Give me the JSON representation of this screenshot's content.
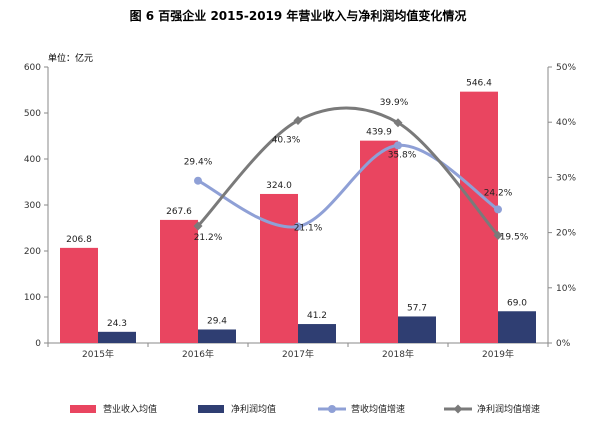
{
  "chart_data": {
    "type": "bar",
    "title": "图 6  百强企业 2015-2019 年营业收入与净利润均值变化情况",
    "unit_label": "单位：亿元",
    "categories": [
      "2015年",
      "2016年",
      "2017年",
      "2018年",
      "2019年"
    ],
    "ylim_left": [
      0,
      600
    ],
    "yticks_left": [
      "0",
      "100",
      "200",
      "300",
      "400",
      "500",
      "600"
    ],
    "ylim_right": [
      0,
      0.5
    ],
    "yticks_right": [
      "0%",
      "10%",
      "20%",
      "30%",
      "40%",
      "50%"
    ],
    "grid": false,
    "legend_position": "bottom",
    "series": [
      {
        "name": "营业收入均值",
        "type": "bar",
        "axis": "left",
        "color": "#e94560",
        "values": [
          206.8,
          267.6,
          324.0,
          439.9,
          546.4
        ],
        "labels": [
          "206.8",
          "267.6",
          "324.0",
          "439.9",
          "546.4"
        ]
      },
      {
        "name": "净利润均值",
        "type": "bar",
        "axis": "left",
        "color": "#2f3e72",
        "values": [
          24.3,
          29.4,
          41.2,
          57.7,
          69.0
        ],
        "labels": [
          "24.3",
          "29.4",
          "41.2",
          "57.7",
          "69.0"
        ]
      },
      {
        "name": "营收均值增速",
        "type": "line",
        "axis": "right",
        "color": "#8fa0d6",
        "marker": "circle",
        "values": [
          null,
          0.294,
          0.211,
          0.358,
          0.242
        ],
        "labels": [
          "",
          "29.4%",
          "21.1%",
          "35.8%",
          "24.2%"
        ]
      },
      {
        "name": "净利润均值增速",
        "type": "line",
        "axis": "right",
        "color": "#7a7a7a",
        "marker": "diamond",
        "values": [
          null,
          0.212,
          0.403,
          0.399,
          0.195
        ],
        "labels": [
          "",
          "21.2%",
          "40.3%",
          "39.9%",
          "19.5%"
        ]
      }
    ]
  }
}
